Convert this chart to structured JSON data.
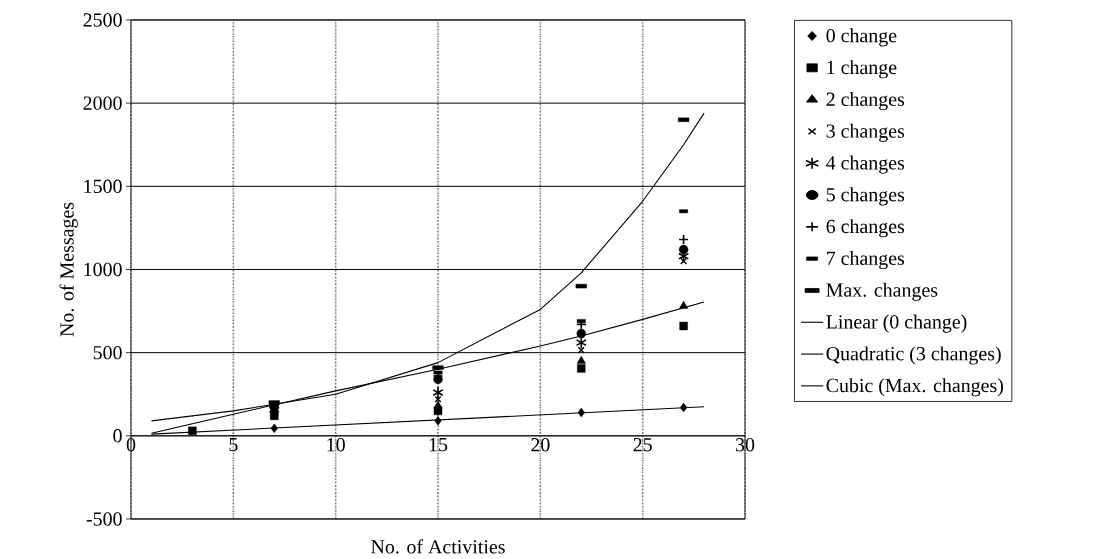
{
  "chart_data": {
    "type": "scatter",
    "xlabel": "No. of Activities",
    "ylabel": "No. of Messages",
    "xlim": [
      0,
      30
    ],
    "ylim": [
      -500,
      2500
    ],
    "xticks": [
      0,
      5,
      10,
      15,
      20,
      25,
      30
    ],
    "yticks": [
      -500,
      0,
      500,
      1000,
      1500,
      2000,
      2500
    ],
    "grid": true,
    "legend": "right",
    "x": [
      3,
      7,
      15,
      22,
      27
    ],
    "series": [
      {
        "name": "0 change",
        "color": "#000000",
        "marker": "diamond",
        "values": [
          null,
          45,
          90,
          140,
          170
        ]
      },
      {
        "name": "1 change",
        "color": "#000000",
        "marker": "square",
        "values": [
          30,
          120,
          150,
          405,
          660
        ]
      },
      {
        "name": "2 changes",
        "color": "#000000",
        "marker": "triangle",
        "values": [
          null,
          140,
          180,
          450,
          780
        ]
      },
      {
        "name": "3 changes",
        "color": "#000000",
        "marker": "cross",
        "values": [
          null,
          null,
          220,
          515,
          1050
        ]
      },
      {
        "name": "4 changes",
        "color": "#000000",
        "values": [
          null,
          160,
          260,
          560,
          1080
        ]
      },
      {
        "name": "5 changes",
        "color": "#000000",
        "marker": "circle",
        "values": [
          null,
          170,
          340,
          615,
          1120
        ]
      },
      {
        "name": "6 changes",
        "color": "#000000",
        "values": [
          null,
          null,
          360,
          670,
          1180
        ]
      },
      {
        "name": "7 changes",
        "color": "#000000",
        "values": [
          null,
          190,
          380,
          690,
          1350
        ]
      },
      {
        "name": "Max. changes",
        "color": "#000000",
        "values": [
          null,
          200,
          410,
          900,
          1900
        ]
      },
      {
        "name": "Linear (0 change)",
        "type": "line",
        "color": "#000000",
        "marker": "none",
        "line_style": "solid",
        "x": [
          1,
          28
        ],
        "values": [
          10,
          175
        ]
      },
      {
        "name": "Quadratic (3 changes)",
        "type": "line",
        "color": "#000000",
        "marker": "none",
        "line_style": "solid",
        "x": [
          1,
          5,
          10,
          15,
          20,
          22,
          25,
          28
        ],
        "values": [
          15,
          130,
          270,
          400,
          540,
          600,
          700,
          805
        ]
      },
      {
        "name": "Cubic (Max. changes)",
        "type": "line",
        "color": "#000000",
        "marker": "none",
        "line_style": "solid",
        "x": [
          1,
          5,
          10,
          15,
          20,
          22,
          25,
          27,
          28
        ],
        "values": [
          90,
          150,
          250,
          440,
          760,
          980,
          1410,
          1750,
          1940
        ]
      }
    ]
  }
}
